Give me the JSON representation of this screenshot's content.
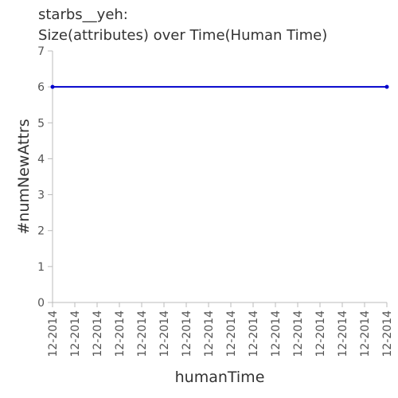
{
  "chart_data": {
    "type": "line",
    "title": "starbs__yeh:",
    "subtitle": "Size(attributes) over Time(Human Time)",
    "xlabel": "humanTime",
    "ylabel": "#numNewAttrs",
    "ylim": [
      0,
      7
    ],
    "yticks": [
      "0",
      "1",
      "2",
      "3",
      "4",
      "5",
      "6",
      "7"
    ],
    "xticks": [
      "12-2014",
      "12-2014",
      "12-2014",
      "12-2014",
      "12-2014",
      "12-2014",
      "12-2014",
      "12-2014",
      "12-2014",
      "12-2014",
      "12-2014",
      "12-2014",
      "12-2014",
      "12-2014",
      "12-2014",
      "12-2014"
    ],
    "grid": false,
    "series": [
      {
        "color": "#0000cc",
        "x": [
          0,
          15
        ],
        "values": [
          6,
          6
        ]
      }
    ]
  }
}
